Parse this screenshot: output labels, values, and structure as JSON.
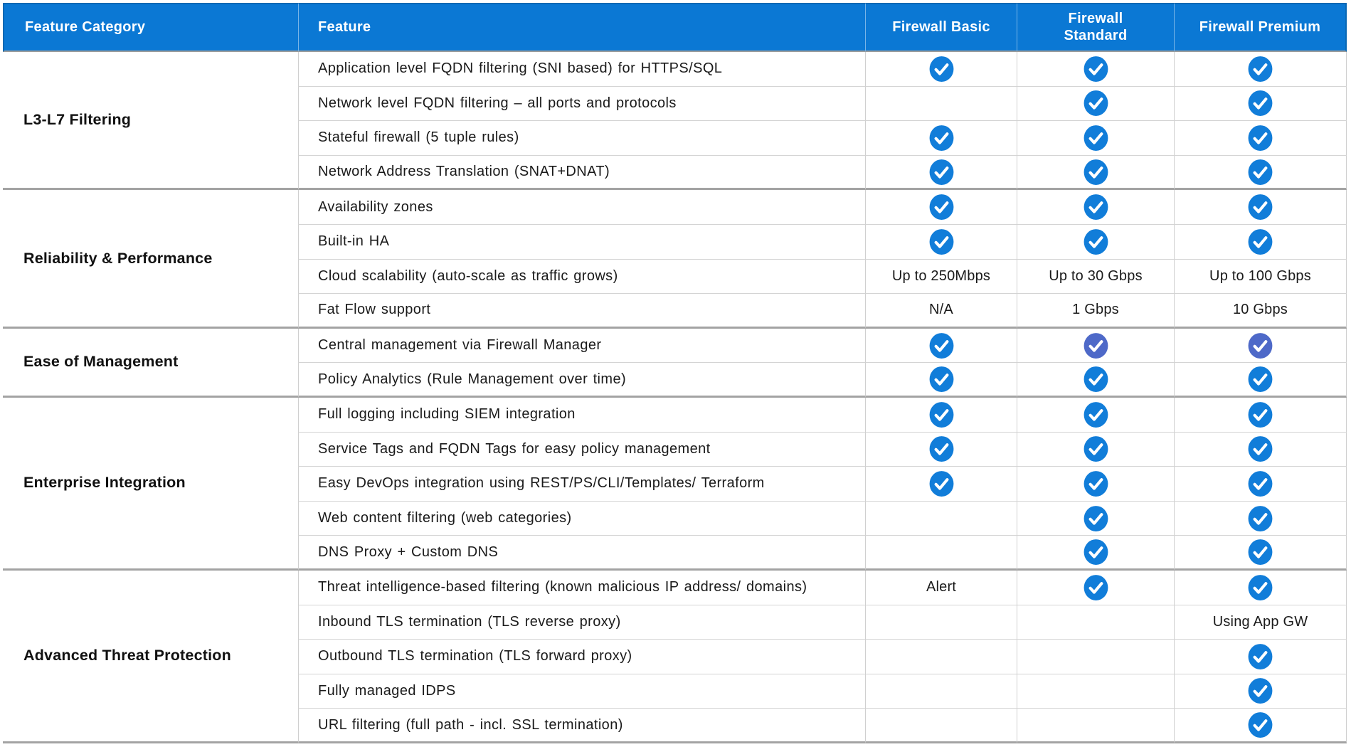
{
  "header": {
    "feature_category": "Feature Category",
    "feature": "Feature",
    "columns": [
      "Firewall Basic",
      "Firewall Standard",
      "Firewall Premium"
    ]
  },
  "icons": {
    "check": "check-circle-icon",
    "check_alt": "check-circle-indigo-icon"
  },
  "colors": {
    "header_bg": "#0b78d4",
    "header_text": "#ffffff",
    "check_blue": "#117dd9",
    "check_indigo": "#4e69c8",
    "group_divider": "#a3a3a3",
    "row_divider": "#d4d4d4"
  },
  "groups": [
    {
      "category": "L3-L7 Filtering",
      "rows": [
        {
          "feature": "Application level FQDN filtering (SNI based) for HTTPS/SQL",
          "basic": "check",
          "standard": "check",
          "premium": "check"
        },
        {
          "feature": "Network level FQDN filtering – all ports and protocols",
          "basic": "",
          "standard": "check",
          "premium": "check"
        },
        {
          "feature": "Stateful firewall (5 tuple rules)",
          "basic": "check",
          "standard": "check",
          "premium": "check"
        },
        {
          "feature": "Network Address Translation (SNAT+DNAT)",
          "basic": "check",
          "standard": "check",
          "premium": "check"
        }
      ]
    },
    {
      "category": "Reliability & Performance",
      "rows": [
        {
          "feature": "Availability zones",
          "basic": "check",
          "standard": "check",
          "premium": "check"
        },
        {
          "feature": "Built-in HA",
          "basic": "check",
          "standard": "check",
          "premium": "check"
        },
        {
          "feature": "Cloud scalability (auto-scale as traffic grows)",
          "basic": "Up to 250Mbps",
          "standard": "Up to 30 Gbps",
          "premium": "Up to 100 Gbps"
        },
        {
          "feature": "Fat Flow support",
          "basic": "N/A",
          "standard": "1 Gbps",
          "premium": "10 Gbps"
        }
      ]
    },
    {
      "category": "Ease of Management",
      "rows": [
        {
          "feature": "Central management via Firewall Manager",
          "basic": "check",
          "standard": "check_alt",
          "premium": "check_alt"
        },
        {
          "feature": "Policy Analytics (Rule Management over time)",
          "basic": "check",
          "standard": "check",
          "premium": "check"
        }
      ]
    },
    {
      "category": "Enterprise Integration",
      "rows": [
        {
          "feature": "Full logging including SIEM integration",
          "basic": "check",
          "standard": "check",
          "premium": "check"
        },
        {
          "feature": "Service Tags and FQDN Tags for easy policy management",
          "basic": "check",
          "standard": "check",
          "premium": "check"
        },
        {
          "feature": "Easy DevOps integration using REST/PS/CLI/Templates/ Terraform",
          "basic": "check",
          "standard": "check",
          "premium": "check"
        },
        {
          "feature": "Web content filtering (web categories)",
          "basic": "",
          "standard": "check",
          "premium": "check"
        },
        {
          "feature": "DNS Proxy + Custom DNS",
          "basic": "",
          "standard": "check",
          "premium": "check"
        }
      ]
    },
    {
      "category": "Advanced Threat Protection",
      "rows": [
        {
          "feature": "Threat intelligence-based filtering (known malicious IP address/ domains)",
          "basic": "Alert",
          "standard": "check",
          "premium": "check"
        },
        {
          "feature": "Inbound TLS termination (TLS reverse proxy)",
          "basic": "",
          "standard": "",
          "premium": "Using App GW"
        },
        {
          "feature": "Outbound TLS termination (TLS forward proxy)",
          "basic": "",
          "standard": "",
          "premium": "check"
        },
        {
          "feature": "Fully managed IDPS",
          "basic": "",
          "standard": "",
          "premium": "check"
        },
        {
          "feature": "URL filtering (full path - incl. SSL termination)",
          "basic": "",
          "standard": "",
          "premium": "check"
        }
      ]
    }
  ]
}
